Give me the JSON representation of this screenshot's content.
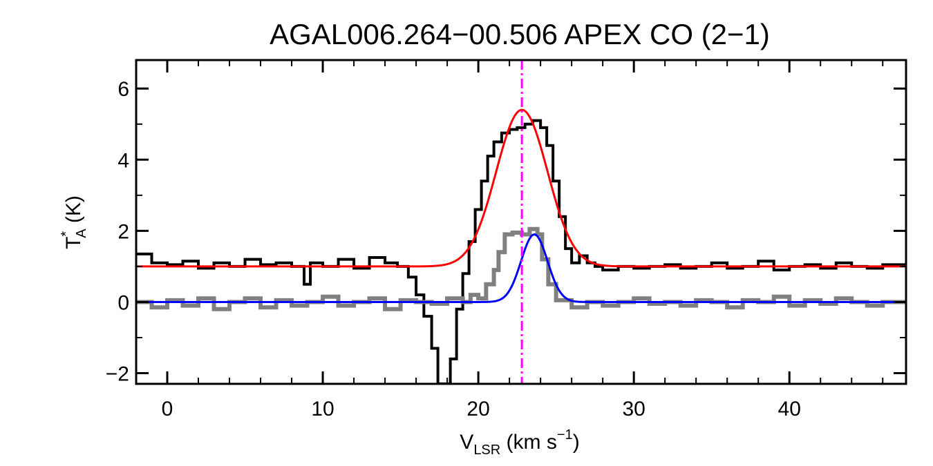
{
  "chart_data": {
    "type": "line",
    "title": "AGAL006.264−00.506  APEX CO (2−1)",
    "xlabel": {
      "main": "V",
      "sub": "LSR",
      "unit_open": " (km s",
      "sup": "−1",
      "unit_close": ")"
    },
    "ylabel": {
      "main": "T",
      "sup": "*",
      "sub": "A",
      "unit": " (K)"
    },
    "xlim": [
      -2,
      47.5
    ],
    "ylim": [
      -2.3,
      6.8
    ],
    "x_ticks": [
      0,
      10,
      20,
      30,
      40
    ],
    "x_tick_labels": [
      "0",
      "10",
      "20",
      "30",
      "40"
    ],
    "y_ticks": [
      -2,
      0,
      2,
      4,
      6
    ],
    "y_tick_labels": [
      "−2",
      "0",
      "2",
      "4",
      "6"
    ],
    "vline": {
      "x": 22.8,
      "color": "#ff00ff",
      "style": "dash-dot"
    },
    "series": [
      {
        "kind": "observed_offset_spectrum",
        "color": "#000000",
        "width": 4,
        "step": true,
        "points": [
          [
            -2.0,
            1.35
          ],
          [
            -1.0,
            1.1
          ],
          [
            0.0,
            1.05
          ],
          [
            1.0,
            1.15
          ],
          [
            2.0,
            0.95
          ],
          [
            3.0,
            1.1
          ],
          [
            4.0,
            1.0
          ],
          [
            5.0,
            1.2
          ],
          [
            6.0,
            1.05
          ],
          [
            7.0,
            1.1
          ],
          [
            8.0,
            1.0
          ],
          [
            8.8,
            0.5
          ],
          [
            9.2,
            1.1
          ],
          [
            10.0,
            1.0
          ],
          [
            11.0,
            1.2
          ],
          [
            12.0,
            0.95
          ],
          [
            13.0,
            1.25
          ],
          [
            14.0,
            1.1
          ],
          [
            14.8,
            1.0
          ],
          [
            15.5,
            0.7
          ],
          [
            16.0,
            0.2
          ],
          [
            16.5,
            -0.4
          ],
          [
            17.0,
            -1.3
          ],
          [
            17.4,
            -2.3
          ],
          [
            17.9,
            -2.3
          ],
          [
            18.2,
            -1.6
          ],
          [
            18.6,
            -0.2
          ],
          [
            19.0,
            0.8
          ],
          [
            19.4,
            1.7
          ],
          [
            19.8,
            2.6
          ],
          [
            20.2,
            3.4
          ],
          [
            20.6,
            4.1
          ],
          [
            21.0,
            4.5
          ],
          [
            21.5,
            4.75
          ],
          [
            22.0,
            4.85
          ],
          [
            22.5,
            4.9
          ],
          [
            23.0,
            5.0
          ],
          [
            23.5,
            5.1
          ],
          [
            24.0,
            4.9
          ],
          [
            24.4,
            4.4
          ],
          [
            24.8,
            3.4
          ],
          [
            25.2,
            2.4
          ],
          [
            25.6,
            1.5
          ],
          [
            26.0,
            1.1
          ],
          [
            26.5,
            1.3
          ],
          [
            27.0,
            1.1
          ],
          [
            27.5,
            1.0
          ],
          [
            28.0,
            0.9
          ],
          [
            29.0,
            1.0
          ],
          [
            30.0,
            0.95
          ],
          [
            31.0,
            1.0
          ],
          [
            32.0,
            1.05
          ],
          [
            33.0,
            0.95
          ],
          [
            34.0,
            1.0
          ],
          [
            35.0,
            1.1
          ],
          [
            36.0,
            0.95
          ],
          [
            37.0,
            1.0
          ],
          [
            38.0,
            1.15
          ],
          [
            39.0,
            0.9
          ],
          [
            40.0,
            1.0
          ],
          [
            41.0,
            1.05
          ],
          [
            42.0,
            0.95
          ],
          [
            43.0,
            1.1
          ],
          [
            44.0,
            1.0
          ],
          [
            45.0,
            0.95
          ],
          [
            46.0,
            1.05
          ],
          [
            47.5,
            1.0
          ]
        ]
      },
      {
        "kind": "gaussian_fit_offset",
        "color": "#ff0000",
        "width": 3,
        "step": false,
        "baseline": 1.0,
        "amplitude": 4.4,
        "center": 22.8,
        "sigma": 1.65
      },
      {
        "kind": "observed_baseline_spectrum",
        "color": "#808080",
        "width": 6,
        "step": true,
        "points": [
          [
            -2.0,
            0.0
          ],
          [
            -1.0,
            -0.15
          ],
          [
            0.0,
            0.05
          ],
          [
            1.0,
            -0.1
          ],
          [
            2.0,
            0.1
          ],
          [
            3.0,
            -0.2
          ],
          [
            4.0,
            0.0
          ],
          [
            5.0,
            0.1
          ],
          [
            6.0,
            -0.15
          ],
          [
            7.0,
            0.05
          ],
          [
            8.0,
            -0.1
          ],
          [
            9.0,
            0.0
          ],
          [
            10.0,
            0.15
          ],
          [
            11.0,
            -0.1
          ],
          [
            12.0,
            0.0
          ],
          [
            13.0,
            0.1
          ],
          [
            14.0,
            -0.2
          ],
          [
            15.0,
            0.05
          ],
          [
            16.0,
            0.0
          ],
          [
            17.0,
            -0.05
          ],
          [
            18.0,
            0.1
          ],
          [
            19.0,
            0.0
          ],
          [
            19.5,
            0.2
          ],
          [
            20.0,
            0.1
          ],
          [
            20.5,
            0.5
          ],
          [
            21.0,
            0.9
          ],
          [
            21.3,
            1.4
          ],
          [
            21.7,
            1.9
          ],
          [
            22.2,
            1.95
          ],
          [
            22.8,
            1.9
          ],
          [
            23.3,
            2.05
          ],
          [
            23.8,
            1.9
          ],
          [
            24.1,
            1.2
          ],
          [
            24.5,
            0.5
          ],
          [
            25.0,
            0.05
          ],
          [
            26.0,
            -0.15
          ],
          [
            27.0,
            0.0
          ],
          [
            28.0,
            -0.1
          ],
          [
            29.0,
            0.0
          ],
          [
            30.0,
            0.1
          ],
          [
            31.0,
            -0.05
          ],
          [
            32.0,
            0.0
          ],
          [
            33.0,
            -0.1
          ],
          [
            34.0,
            0.05
          ],
          [
            35.0,
            0.0
          ],
          [
            36.0,
            -0.15
          ],
          [
            37.0,
            0.05
          ],
          [
            38.0,
            0.0
          ],
          [
            39.0,
            0.15
          ],
          [
            40.0,
            -0.1
          ],
          [
            41.0,
            0.05
          ],
          [
            42.0,
            -0.05
          ],
          [
            43.0,
            0.1
          ],
          [
            44.0,
            0.0
          ],
          [
            45.0,
            -0.1
          ],
          [
            46.0,
            0.0
          ],
          [
            47.5,
            -0.05
          ]
        ]
      },
      {
        "kind": "gaussian_fit_baseline",
        "color": "#0000ff",
        "width": 3,
        "step": false,
        "baseline": 0.0,
        "amplitude": 1.9,
        "center": 23.6,
        "sigma": 0.85
      }
    ]
  }
}
